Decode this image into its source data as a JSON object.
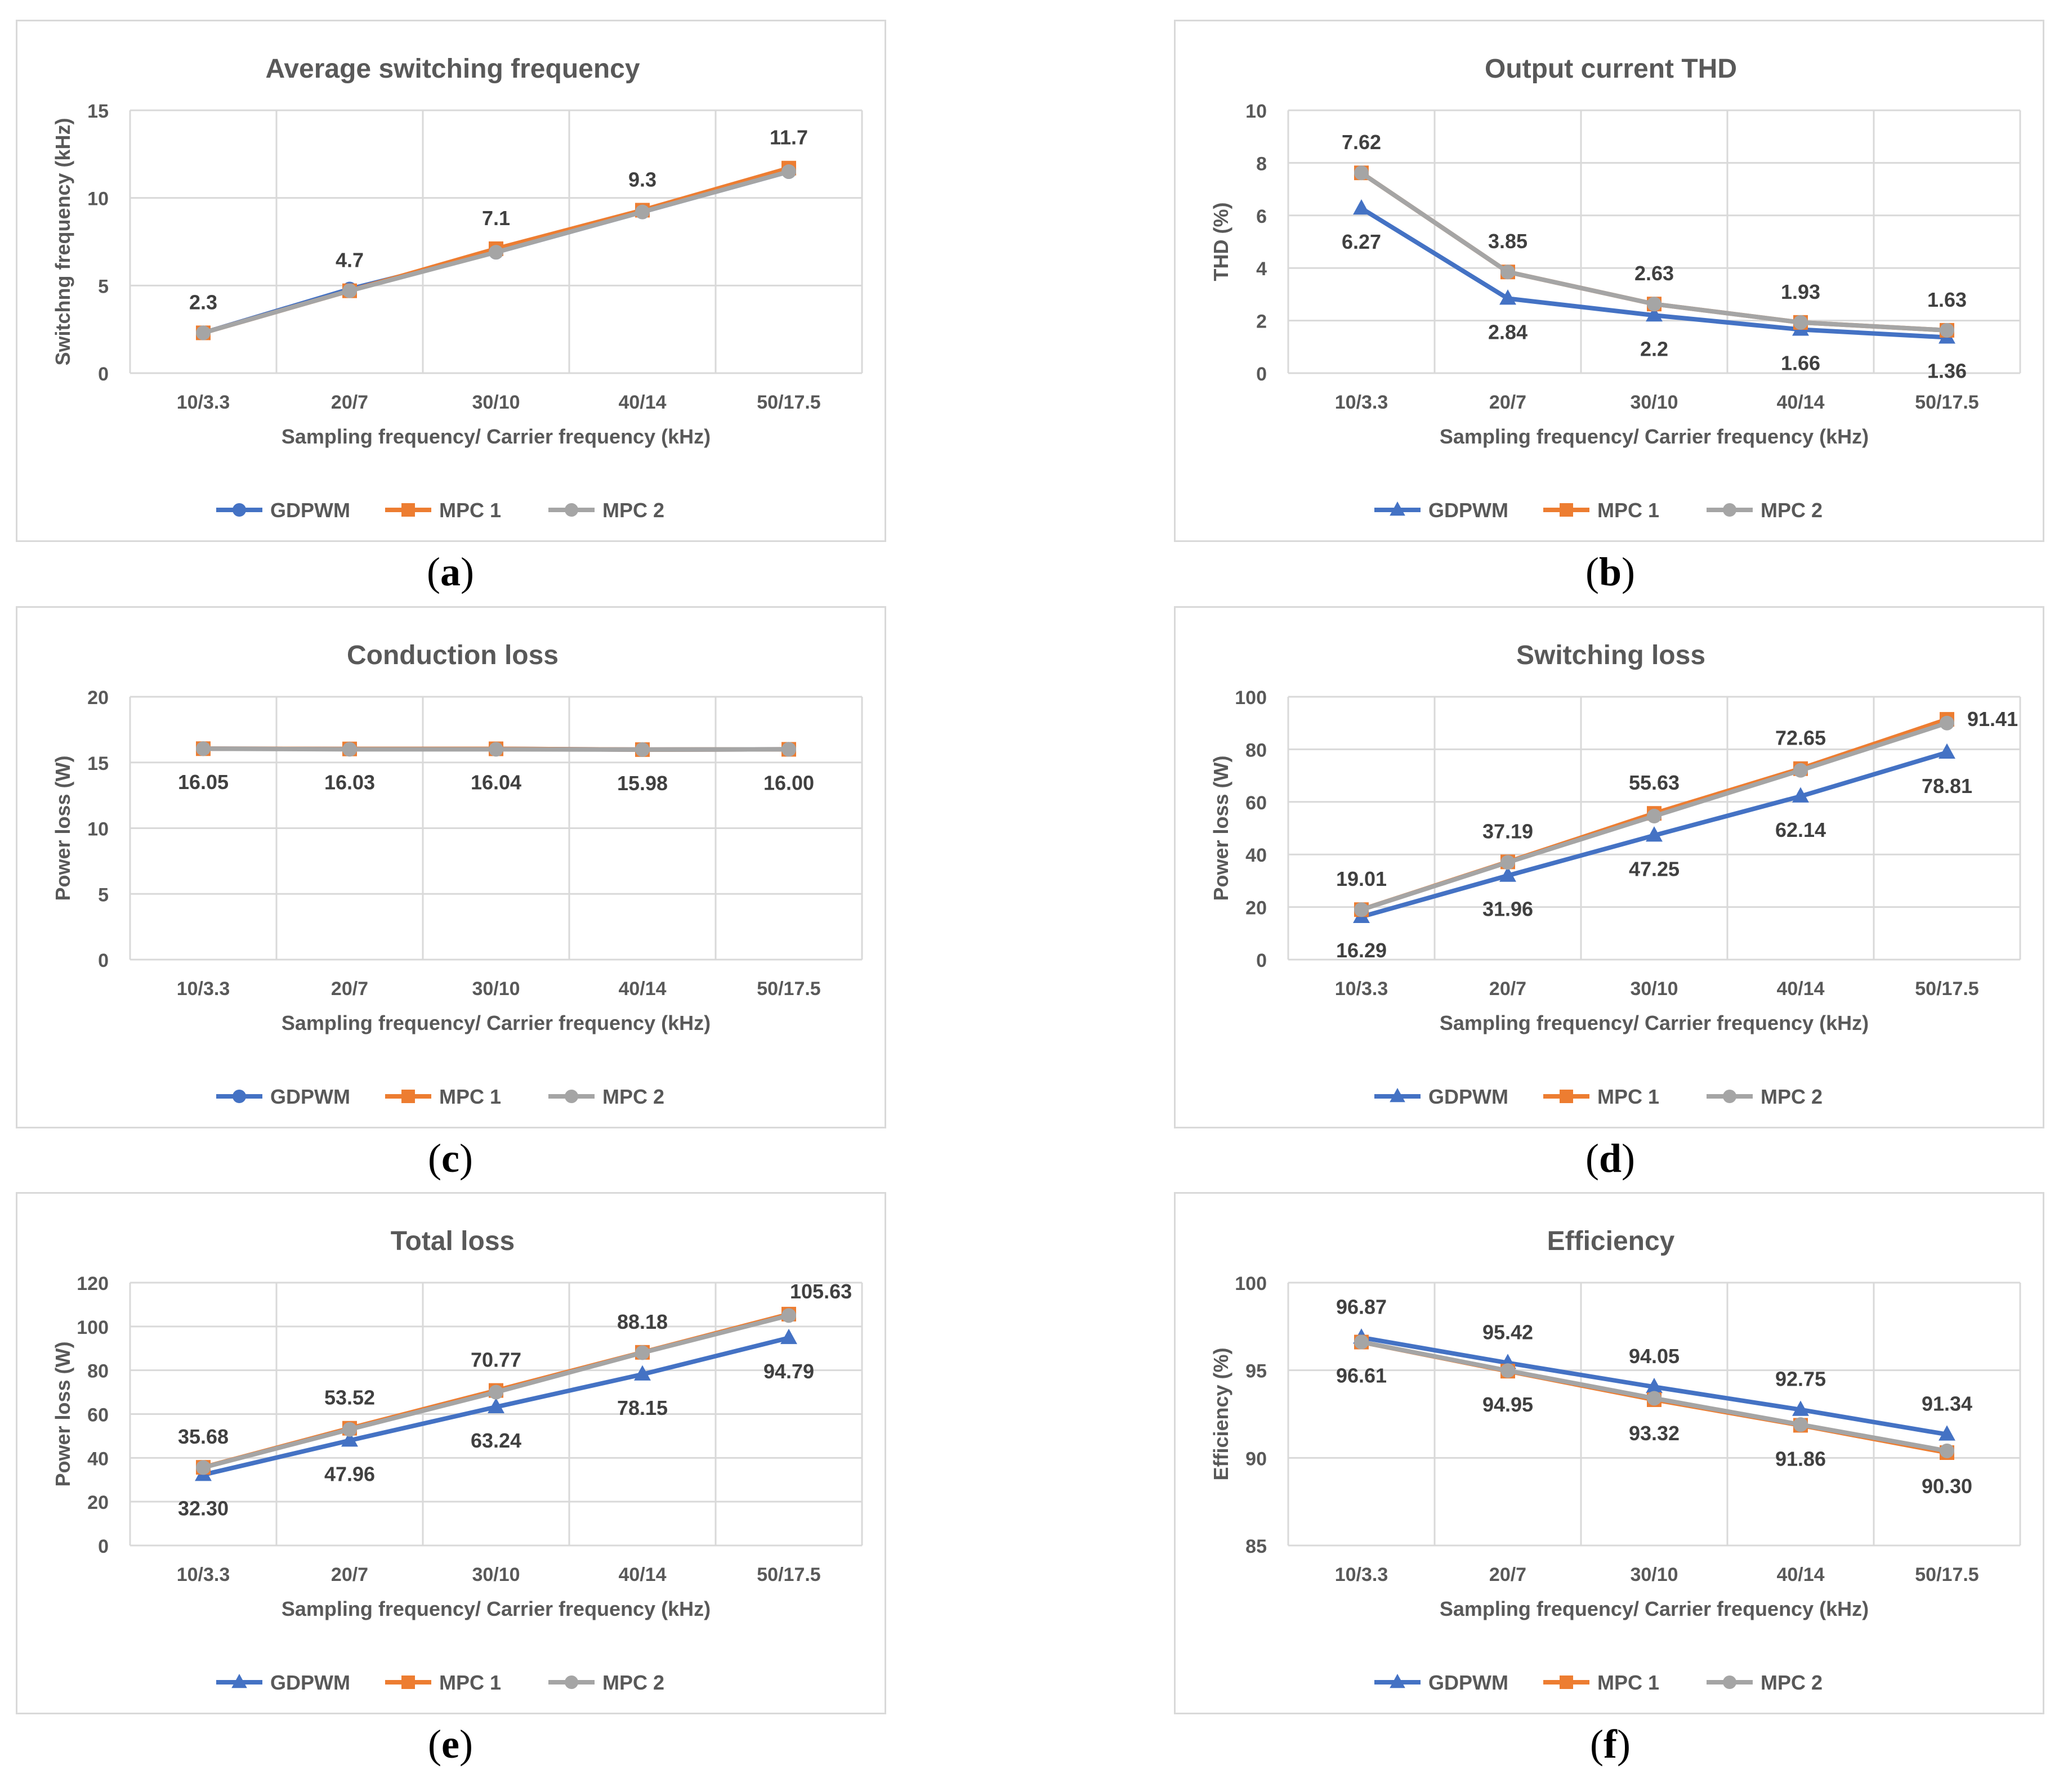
{
  "chart_data": [
    {
      "type": "line",
      "panel_label": "a",
      "title": "Average switching frequency",
      "xlabel": "Sampling frequency/ Carrier frequency (kHz)",
      "ylabel": "Switchng frequency (kHz)",
      "categories": [
        "10/3.3",
        "20/7",
        "30/10",
        "40/14",
        "50/17.5"
      ],
      "ylim": [
        0,
        15
      ],
      "yticks": [
        0,
        5,
        10,
        15
      ],
      "grid": true,
      "legend_position": "bottom",
      "series": [
        {
          "name": "GDPWM",
          "color": "#4472c4",
          "marker": "circle",
          "values": [
            2.3,
            4.8,
            6.9,
            9.2,
            11.5
          ]
        },
        {
          "name": "MPC 1",
          "color": "#ed7d31",
          "marker": "square",
          "values": [
            2.3,
            4.7,
            7.1,
            9.3,
            11.7
          ]
        },
        {
          "name": "MPC 2",
          "color": "#a5a5a5",
          "marker": "circle",
          "values": [
            2.3,
            4.7,
            6.9,
            9.2,
            11.5
          ]
        }
      ],
      "annotations": [
        {
          "text": "2.3",
          "cat": 0,
          "value": 2.3,
          "pos": "above"
        },
        {
          "text": "4.7",
          "cat": 1,
          "value": 4.7,
          "pos": "above"
        },
        {
          "text": "7.1",
          "cat": 2,
          "value": 7.1,
          "pos": "above"
        },
        {
          "text": "9.3",
          "cat": 3,
          "value": 9.3,
          "pos": "above"
        },
        {
          "text": "11.7",
          "cat": 4,
          "value": 11.7,
          "pos": "above"
        }
      ]
    },
    {
      "type": "line",
      "panel_label": "b",
      "title": "Output current THD",
      "xlabel": "Sampling frequency/ Carrier frequency (kHz)",
      "ylabel": "THD (%)",
      "categories": [
        "10/3.3",
        "20/7",
        "30/10",
        "40/14",
        "50/17.5"
      ],
      "ylim": [
        0,
        10
      ],
      "yticks": [
        0,
        2,
        4,
        6,
        8,
        10
      ],
      "grid": true,
      "legend_position": "bottom",
      "series": [
        {
          "name": "GDPWM",
          "color": "#4472c4",
          "marker": "triangle",
          "values": [
            6.27,
            2.84,
            2.2,
            1.66,
            1.36
          ]
        },
        {
          "name": "MPC 1",
          "color": "#ed7d31",
          "marker": "square",
          "values": [
            7.62,
            3.85,
            2.63,
            1.93,
            1.63
          ]
        },
        {
          "name": "MPC 2",
          "color": "#a5a5a5",
          "marker": "circle",
          "values": [
            7.62,
            3.85,
            2.63,
            1.93,
            1.63
          ]
        }
      ],
      "annotations": [
        {
          "text": "7.62",
          "cat": 0,
          "value": 7.62,
          "pos": "above"
        },
        {
          "text": "3.85",
          "cat": 1,
          "value": 3.85,
          "pos": "above"
        },
        {
          "text": "2.63",
          "cat": 2,
          "value": 2.63,
          "pos": "above"
        },
        {
          "text": "1.93",
          "cat": 3,
          "value": 1.93,
          "pos": "above"
        },
        {
          "text": "1.63",
          "cat": 4,
          "value": 1.63,
          "pos": "above"
        },
        {
          "text": "6.27",
          "cat": 0,
          "value": 6.27,
          "pos": "below"
        },
        {
          "text": "2.84",
          "cat": 1,
          "value": 2.84,
          "pos": "below"
        },
        {
          "text": "2.2",
          "cat": 2,
          "value": 2.2,
          "pos": "below"
        },
        {
          "text": "1.66",
          "cat": 3,
          "value": 1.66,
          "pos": "below"
        },
        {
          "text": "1.36",
          "cat": 4,
          "value": 1.36,
          "pos": "below"
        }
      ]
    },
    {
      "type": "line",
      "panel_label": "c",
      "title": "Conduction loss",
      "xlabel": "Sampling frequency/ Carrier frequency (kHz)",
      "ylabel": "Power loss (W)",
      "categories": [
        "10/3.3",
        "20/7",
        "30/10",
        "40/14",
        "50/17.5"
      ],
      "ylim": [
        0,
        20
      ],
      "yticks": [
        0,
        5,
        10,
        15,
        20
      ],
      "grid": true,
      "legend_position": "bottom",
      "series": [
        {
          "name": "GDPWM",
          "color": "#4472c4",
          "marker": "circle",
          "values": [
            16.05,
            16.03,
            16.04,
            15.98,
            16.0
          ]
        },
        {
          "name": "MPC 1",
          "color": "#ed7d31",
          "marker": "square",
          "values": [
            16.05,
            16.03,
            16.04,
            15.98,
            16.0
          ]
        },
        {
          "name": "MPC 2",
          "color": "#a5a5a5",
          "marker": "circle",
          "values": [
            16.05,
            16.0,
            16.0,
            15.98,
            16.0
          ]
        }
      ],
      "annotations": [
        {
          "text": "16.05",
          "cat": 0,
          "value": 16.05,
          "pos": "below"
        },
        {
          "text": "16.03",
          "cat": 1,
          "value": 16.03,
          "pos": "below"
        },
        {
          "text": "16.04",
          "cat": 2,
          "value": 16.04,
          "pos": "below"
        },
        {
          "text": "15.98",
          "cat": 3,
          "value": 15.98,
          "pos": "below"
        },
        {
          "text": "16.00",
          "cat": 4,
          "value": 16.0,
          "pos": "below"
        }
      ]
    },
    {
      "type": "line",
      "panel_label": "d",
      "title": "Switching loss",
      "xlabel": "Sampling frequency/ Carrier frequency (kHz)",
      "ylabel": "Power loss (W)",
      "categories": [
        "10/3.3",
        "20/7",
        "30/10",
        "40/14",
        "50/17.5"
      ],
      "ylim": [
        0,
        100
      ],
      "yticks": [
        0,
        20,
        40,
        60,
        80,
        100
      ],
      "grid": true,
      "legend_position": "bottom",
      "series": [
        {
          "name": "GDPWM",
          "color": "#4472c4",
          "marker": "triangle",
          "values": [
            16.29,
            31.96,
            47.25,
            62.14,
            78.81
          ]
        },
        {
          "name": "MPC 1",
          "color": "#ed7d31",
          "marker": "square",
          "values": [
            19.01,
            37.19,
            55.63,
            72.65,
            91.41
          ]
        },
        {
          "name": "MPC 2",
          "color": "#a5a5a5",
          "marker": "circle",
          "values": [
            19.0,
            37.0,
            54.6,
            72.0,
            90.0
          ]
        }
      ],
      "annotations": [
        {
          "text": "19.01",
          "cat": 0,
          "value": 19.01,
          "pos": "above"
        },
        {
          "text": "37.19",
          "cat": 1,
          "value": 37.19,
          "pos": "above"
        },
        {
          "text": "55.63",
          "cat": 2,
          "value": 55.63,
          "pos": "above"
        },
        {
          "text": "72.65",
          "cat": 3,
          "value": 72.65,
          "pos": "above"
        },
        {
          "text": "91.41",
          "cat": 4,
          "value": 91.41,
          "pos": "right"
        },
        {
          "text": "16.29",
          "cat": 0,
          "value": 16.29,
          "pos": "below"
        },
        {
          "text": "31.96",
          "cat": 1,
          "value": 31.96,
          "pos": "below"
        },
        {
          "text": "47.25",
          "cat": 2,
          "value": 47.25,
          "pos": "below"
        },
        {
          "text": "62.14",
          "cat": 3,
          "value": 62.14,
          "pos": "below"
        },
        {
          "text": "78.81",
          "cat": 4,
          "value": 78.81,
          "pos": "below"
        }
      ]
    },
    {
      "type": "line",
      "panel_label": "e",
      "title": "Total loss",
      "xlabel": "Sampling frequency/ Carrier frequency (kHz)",
      "ylabel": "Power loss (W)",
      "categories": [
        "10/3.3",
        "20/7",
        "30/10",
        "40/14",
        "50/17.5"
      ],
      "ylim": [
        0,
        120
      ],
      "yticks": [
        0,
        20,
        40,
        60,
        80,
        100,
        120
      ],
      "grid": true,
      "legend_position": "bottom",
      "series": [
        {
          "name": "GDPWM",
          "color": "#4472c4",
          "marker": "triangle",
          "values": [
            32.3,
            47.96,
            63.24,
            78.15,
            94.79
          ]
        },
        {
          "name": "MPC 1",
          "color": "#ed7d31",
          "marker": "square",
          "values": [
            35.68,
            53.52,
            70.77,
            88.18,
            105.63
          ]
        },
        {
          "name": "MPC 2",
          "color": "#a5a5a5",
          "marker": "circle",
          "values": [
            35.6,
            53.0,
            70.0,
            88.0,
            105.0
          ]
        }
      ],
      "annotations": [
        {
          "text": "35.68",
          "cat": 0,
          "value": 35.68,
          "pos": "above"
        },
        {
          "text": "53.52",
          "cat": 1,
          "value": 53.52,
          "pos": "above"
        },
        {
          "text": "70.77",
          "cat": 2,
          "value": 70.77,
          "pos": "above"
        },
        {
          "text": "88.18",
          "cat": 3,
          "value": 88.18,
          "pos": "above"
        },
        {
          "text": "105.63",
          "cat": 4,
          "value": 105.63,
          "pos": "aboveright"
        },
        {
          "text": "32.30",
          "cat": 0,
          "value": 32.3,
          "pos": "below"
        },
        {
          "text": "47.96",
          "cat": 1,
          "value": 47.96,
          "pos": "below"
        },
        {
          "text": "63.24",
          "cat": 2,
          "value": 63.24,
          "pos": "below"
        },
        {
          "text": "78.15",
          "cat": 3,
          "value": 78.15,
          "pos": "below"
        },
        {
          "text": "94.79",
          "cat": 4,
          "value": 94.79,
          "pos": "below"
        }
      ]
    },
    {
      "type": "line",
      "panel_label": "f",
      "title": "Efficiency",
      "xlabel": "Sampling frequency/ Carrier frequency (kHz)",
      "ylabel": "Efficiency (%)",
      "categories": [
        "10/3.3",
        "20/7",
        "30/10",
        "40/14",
        "50/17.5"
      ],
      "ylim": [
        85,
        100
      ],
      "yticks": [
        85,
        90,
        95,
        100
      ],
      "grid": true,
      "legend_position": "bottom",
      "series": [
        {
          "name": "GDPWM",
          "color": "#4472c4",
          "marker": "triangle",
          "values": [
            96.87,
            95.42,
            94.05,
            92.75,
            91.34
          ]
        },
        {
          "name": "MPC 1",
          "color": "#ed7d31",
          "marker": "square",
          "values": [
            96.61,
            94.95,
            93.32,
            91.86,
            90.3
          ]
        },
        {
          "name": "MPC 2",
          "color": "#a5a5a5",
          "marker": "circle",
          "values": [
            96.61,
            94.98,
            93.4,
            91.9,
            90.4
          ]
        }
      ],
      "annotations": [
        {
          "text": "96.87",
          "cat": 0,
          "value": 96.87,
          "pos": "above"
        },
        {
          "text": "95.42",
          "cat": 1,
          "value": 95.42,
          "pos": "above"
        },
        {
          "text": "94.05",
          "cat": 2,
          "value": 94.05,
          "pos": "above"
        },
        {
          "text": "92.75",
          "cat": 3,
          "value": 92.75,
          "pos": "above"
        },
        {
          "text": "91.34",
          "cat": 4,
          "value": 91.34,
          "pos": "above"
        },
        {
          "text": "96.61",
          "cat": 0,
          "value": 96.61,
          "pos": "below"
        },
        {
          "text": "94.95",
          "cat": 1,
          "value": 94.95,
          "pos": "below"
        },
        {
          "text": "93.32",
          "cat": 2,
          "value": 93.32,
          "pos": "below"
        },
        {
          "text": "91.86",
          "cat": 3,
          "value": 91.86,
          "pos": "below"
        },
        {
          "text": "90.30",
          "cat": 4,
          "value": 90.3,
          "pos": "below"
        }
      ]
    }
  ]
}
